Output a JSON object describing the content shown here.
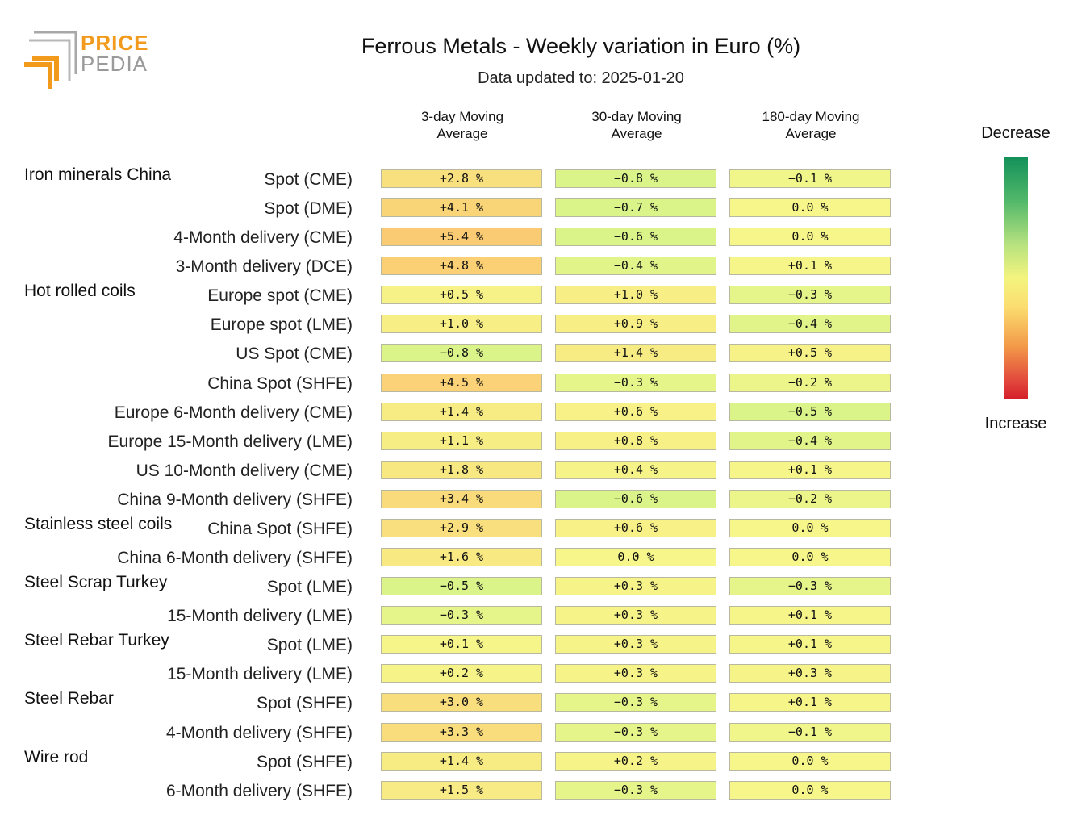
{
  "logo": {
    "word1": "PRICE",
    "word2": "PEDIA"
  },
  "title": "Ferrous Metals - Weekly variation in Euro (%)",
  "subtitle": "Data updated to: 2025-01-20",
  "legend": {
    "top": "Decrease",
    "bottom": "Increase"
  },
  "colors": {
    "brand_orange": "#f29a1c",
    "brand_grey": "#9a9a9a"
  },
  "columns": [
    {
      "line1": "3-day Moving",
      "line2": "Average"
    },
    {
      "line1": "30-day Moving",
      "line2": "Average"
    },
    {
      "line1": "180-day Moving",
      "line2": "Average"
    }
  ],
  "chart_data": {
    "type": "heatmap",
    "title": "Ferrous Metals - Weekly variation in Euro (%)",
    "unit": "%",
    "columns": [
      "3-day Moving Average",
      "30-day Moving Average",
      "180-day Moving Average"
    ],
    "groups": [
      {
        "name": "Iron minerals China",
        "rows": [
          {
            "label": "Spot (CME)",
            "values": [
              2.8,
              -0.8,
              -0.1
            ]
          },
          {
            "label": "Spot (DME)",
            "values": [
              4.1,
              -0.7,
              0.0
            ]
          },
          {
            "label": "4-Month delivery (CME)",
            "values": [
              5.4,
              -0.6,
              0.0
            ]
          },
          {
            "label": "3-Month delivery (DCE)",
            "values": [
              4.8,
              -0.4,
              0.1
            ]
          }
        ]
      },
      {
        "name": "Hot rolled coils",
        "rows": [
          {
            "label": "Europe spot (CME)",
            "values": [
              0.5,
              1.0,
              -0.3
            ]
          },
          {
            "label": "Europe spot (LME)",
            "values": [
              1.0,
              0.9,
              -0.4
            ]
          },
          {
            "label": "US Spot (CME)",
            "values": [
              -0.8,
              1.4,
              0.5
            ]
          },
          {
            "label": "China Spot (SHFE)",
            "values": [
              4.5,
              -0.3,
              -0.2
            ]
          },
          {
            "label": "Europe 6-Month delivery (CME)",
            "values": [
              1.4,
              0.6,
              -0.5
            ]
          },
          {
            "label": "Europe 15-Month delivery (LME)",
            "values": [
              1.1,
              0.8,
              -0.4
            ]
          },
          {
            "label": "US 10-Month delivery (CME)",
            "values": [
              1.8,
              0.4,
              0.1
            ]
          },
          {
            "label": "China 9-Month delivery (SHFE)",
            "values": [
              3.4,
              -0.6,
              -0.2
            ]
          }
        ]
      },
      {
        "name": "Stainless steel coils",
        "rows": [
          {
            "label": "China Spot (SHFE)",
            "values": [
              2.9,
              0.6,
              0.0
            ]
          },
          {
            "label": "China 6-Month delivery (SHFE)",
            "values": [
              1.6,
              0.0,
              0.0
            ]
          }
        ]
      },
      {
        "name": "Steel Scrap Turkey",
        "rows": [
          {
            "label": "Spot (LME)",
            "values": [
              -0.5,
              0.3,
              -0.3
            ]
          },
          {
            "label": "15-Month delivery (LME)",
            "values": [
              -0.3,
              0.3,
              0.1
            ]
          }
        ]
      },
      {
        "name": "Steel Rebar Turkey",
        "rows": [
          {
            "label": "Spot (LME)",
            "values": [
              0.1,
              0.3,
              0.1
            ]
          },
          {
            "label": "15-Month delivery (LME)",
            "values": [
              0.2,
              0.3,
              0.3
            ]
          }
        ]
      },
      {
        "name": "Steel Rebar",
        "rows": [
          {
            "label": "Spot (SHFE)",
            "values": [
              3.0,
              -0.3,
              0.1
            ]
          },
          {
            "label": "4-Month delivery (SHFE)",
            "values": [
              3.3,
              -0.3,
              -0.1
            ]
          }
        ]
      },
      {
        "name": "Wire rod",
        "rows": [
          {
            "label": "Spot (SHFE)",
            "values": [
              1.4,
              0.2,
              0.0
            ]
          },
          {
            "label": "6-Month delivery (SHFE)",
            "values": [
              1.5,
              -0.3,
              0.0
            ]
          }
        ]
      }
    ]
  }
}
